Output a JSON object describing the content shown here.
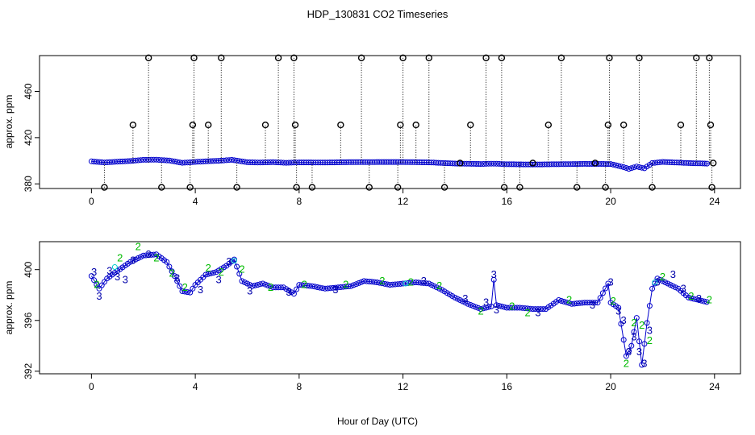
{
  "title": "HDP_130831  CO2 Timeseries",
  "xlabel": "Hour of Day (UTC)",
  "colors": {
    "main": "#0000cc",
    "flag2": "#00bb00",
    "flag3": "#0000aa",
    "flag1": "#00cccc",
    "axis": "#000000"
  },
  "chart_data": [
    {
      "type": "scatter",
      "panel": "top",
      "ylabel": "approx. ppm",
      "xlim": [
        -2,
        25
      ],
      "ylim": [
        376,
        491
      ],
      "x_ticks": [
        "0",
        "4",
        "8",
        "12",
        "16",
        "20",
        "24"
      ],
      "y_ticks": [
        "380",
        "420",
        "460"
      ],
      "series": [
        {
          "name": "timeseries",
          "marker": "circle",
          "points": [
            [
              0,
              399.5
            ],
            [
              0.5,
              398.5
            ],
            [
              1,
              399.2
            ],
            [
              1.5,
              399.8
            ],
            [
              2,
              400.8
            ],
            [
              2.5,
              400.9
            ],
            [
              3,
              400.2
            ],
            [
              3.5,
              398.2
            ],
            [
              4,
              399
            ],
            [
              4.5,
              399.6
            ],
            [
              5,
              400.1
            ],
            [
              5.4,
              400.8
            ],
            [
              6,
              398.7
            ],
            [
              6.5,
              398.5
            ],
            [
              7,
              398.8
            ],
            [
              7.5,
              398.2
            ],
            [
              8,
              398.6
            ],
            [
              9,
              398.5
            ],
            [
              10,
              398.8
            ],
            [
              11,
              398.9
            ],
            [
              12,
              398.9
            ],
            [
              13,
              398.6
            ],
            [
              14,
              397.6
            ],
            [
              15,
              397.2
            ],
            [
              15.5,
              397.5
            ],
            [
              16,
              397
            ],
            [
              17,
              396.8
            ],
            [
              18,
              397
            ],
            [
              19,
              397.3
            ],
            [
              20,
              397.2
            ],
            [
              20.5,
              394.5
            ],
            [
              20.7,
              393
            ],
            [
              21,
              395
            ],
            [
              21.3,
              393.5
            ],
            [
              21.6,
              398
            ],
            [
              22,
              399
            ],
            [
              23,
              398
            ],
            [
              23.8,
              397.5
            ]
          ]
        },
        {
          "name": "flags",
          "marker": "circle-bold",
          "points": [
            [
              0.5,
              377
            ],
            [
              1.6,
              431
            ],
            [
              2.2,
              489
            ],
            [
              2.7,
              377
            ],
            [
              3.8,
              377
            ],
            [
              3.9,
              431
            ],
            [
              3.95,
              489
            ],
            [
              4.5,
              431
            ],
            [
              5.0,
              489
            ],
            [
              5.6,
              377
            ],
            [
              6.7,
              431
            ],
            [
              7.2,
              489
            ],
            [
              7.8,
              489
            ],
            [
              7.85,
              431
            ],
            [
              7.9,
              377
            ],
            [
              8.5,
              377
            ],
            [
              9.6,
              431
            ],
            [
              10.4,
              489
            ],
            [
              10.7,
              377
            ],
            [
              11.8,
              377
            ],
            [
              11.9,
              431
            ],
            [
              12.0,
              489
            ],
            [
              12.5,
              431
            ],
            [
              13.0,
              489
            ],
            [
              13.6,
              377
            ],
            [
              14.2,
              398
            ],
            [
              14.6,
              431
            ],
            [
              15.2,
              489
            ],
            [
              15.8,
              489
            ],
            [
              15.9,
              377
            ],
            [
              16.5,
              377
            ],
            [
              17.0,
              398
            ],
            [
              17.6,
              431
            ],
            [
              18.1,
              489
            ],
            [
              18.7,
              377
            ],
            [
              19.4,
              398
            ],
            [
              19.8,
              377
            ],
            [
              19.9,
              431
            ],
            [
              19.95,
              489
            ],
            [
              20.5,
              431
            ],
            [
              21.1,
              489
            ],
            [
              21.6,
              377
            ],
            [
              22.7,
              431
            ],
            [
              23.3,
              489
            ],
            [
              23.8,
              489
            ],
            [
              23.85,
              431
            ],
            [
              23.9,
              377
            ],
            [
              23.95,
              398
            ]
          ]
        }
      ]
    },
    {
      "type": "scatter",
      "panel": "bottom",
      "ylabel": "approx. ppm",
      "xlim": [
        -2,
        25
      ],
      "ylim": [
        391.8,
        402.2
      ],
      "x_ticks": [
        "0",
        "4",
        "8",
        "12",
        "16",
        "20",
        "24"
      ],
      "y_ticks": [
        "392",
        "396",
        "400"
      ],
      "series": [
        {
          "name": "timeseries",
          "marker": "circle",
          "points": [
            [
              0,
              399.5
            ],
            [
              0.3,
              398.5
            ],
            [
              0.6,
              399.3
            ],
            [
              1,
              399.9
            ],
            [
              1.5,
              400.6
            ],
            [
              2,
              401.1
            ],
            [
              2.5,
              401.2
            ],
            [
              2.9,
              400.6
            ],
            [
              3.2,
              399.5
            ],
            [
              3.5,
              398.3
            ],
            [
              3.8,
              398.2
            ],
            [
              4,
              398.8
            ],
            [
              4.4,
              399.6
            ],
            [
              4.8,
              399.8
            ],
            [
              5.2,
              400.3
            ],
            [
              5.5,
              400.8
            ],
            [
              5.8,
              399.1
            ],
            [
              6.2,
              398.7
            ],
            [
              6.6,
              398.9
            ],
            [
              7,
              398.6
            ],
            [
              7.4,
              398.6
            ],
            [
              7.8,
              398.1
            ],
            [
              8,
              398.8
            ],
            [
              8.5,
              398.7
            ],
            [
              9,
              398.5
            ],
            [
              9.5,
              398.6
            ],
            [
              10,
              398.7
            ],
            [
              10.5,
              399.1
            ],
            [
              11,
              399
            ],
            [
              11.5,
              398.8
            ],
            [
              12,
              398.9
            ],
            [
              12.5,
              399.0
            ],
            [
              13,
              398.9
            ],
            [
              13.5,
              398.4
            ],
            [
              14,
              397.8
            ],
            [
              14.5,
              397.3
            ],
            [
              15,
              396.9
            ],
            [
              15.4,
              397.1
            ],
            [
              15.5,
              399.2
            ],
            [
              15.6,
              397.2
            ],
            [
              16,
              397.0
            ],
            [
              16.5,
              397.0
            ],
            [
              17,
              396.9
            ],
            [
              17.5,
              396.9
            ],
            [
              18,
              397.6
            ],
            [
              18.5,
              397.3
            ],
            [
              19,
              397.4
            ],
            [
              19.5,
              397.4
            ],
            [
              19.9,
              398.9
            ],
            [
              20,
              397.4
            ],
            [
              20.3,
              397.0
            ],
            [
              20.6,
              393.2
            ],
            [
              20.8,
              394.0
            ],
            [
              21,
              396.2
            ],
            [
              21.2,
              392.5
            ],
            [
              21.4,
              395.8
            ],
            [
              21.6,
              398.5
            ],
            [
              21.8,
              399.3
            ],
            [
              22.2,
              398.9
            ],
            [
              22.6,
              398.5
            ],
            [
              23,
              397.8
            ],
            [
              23.4,
              397.6
            ],
            [
              23.8,
              397.4
            ]
          ]
        },
        {
          "name": "flag 2",
          "marker": "2",
          "points": [
            [
              0.2,
              398.8
            ],
            [
              1.1,
              400.9
            ],
            [
              1.8,
              401.8
            ],
            [
              2.5,
              400.9
            ],
            [
              3.1,
              399.7
            ],
            [
              3.6,
              398.6
            ],
            [
              4.5,
              400.1
            ],
            [
              5,
              399.8
            ],
            [
              5.8,
              400.0
            ],
            [
              6.9,
              398.6
            ],
            [
              8.2,
              398.8
            ],
            [
              9.8,
              398.8
            ],
            [
              11.2,
              399.1
            ],
            [
              12.3,
              399.0
            ],
            [
              13.4,
              398.7
            ],
            [
              15,
              396.7
            ],
            [
              16.2,
              397.1
            ],
            [
              16.8,
              396.6
            ],
            [
              18.4,
              397.6
            ],
            [
              20.1,
              397.5
            ],
            [
              20.6,
              392.6
            ],
            [
              20.9,
              395.8
            ],
            [
              21.2,
              395.6
            ],
            [
              21.5,
              394.4
            ],
            [
              22.0,
              399.4
            ],
            [
              23.1,
              397.9
            ],
            [
              23.8,
              397.6
            ]
          ]
        },
        {
          "name": "flag 3",
          "marker": "3",
          "points": [
            [
              0.1,
              399.8
            ],
            [
              0.3,
              397.9
            ],
            [
              0.7,
              399.9
            ],
            [
              1,
              399.4
            ],
            [
              1.3,
              399.2
            ],
            [
              1.6,
              400.7
            ],
            [
              2.2,
              401.2
            ],
            [
              3.3,
              399.3
            ],
            [
              4.2,
              398.4
            ],
            [
              4.9,
              399.2
            ],
            [
              5.3,
              400.6
            ],
            [
              6.1,
              398.3
            ],
            [
              7.6,
              398.2
            ],
            [
              9.4,
              398.4
            ],
            [
              12.8,
              399.1
            ],
            [
              14.4,
              397.7
            ],
            [
              15.2,
              397.4
            ],
            [
              15.5,
              399.6
            ],
            [
              15.6,
              396.8
            ],
            [
              17.2,
              396.6
            ],
            [
              19.3,
              397.2
            ],
            [
              20.0,
              399.0
            ],
            [
              20.3,
              396.7
            ],
            [
              20.5,
              396.0
            ],
            [
              20.7,
              393.5
            ],
            [
              20.9,
              394.7
            ],
            [
              21.1,
              393.5
            ],
            [
              21.3,
              392.6
            ],
            [
              21.5,
              395.2
            ],
            [
              21.8,
              399.0
            ],
            [
              22.4,
              399.6
            ],
            [
              22.8,
              398.5
            ],
            [
              23.4,
              397.7
            ]
          ]
        },
        {
          "name": "flag 1",
          "marker": "circle-light",
          "points": [
            [
              0.9,
              400.2
            ],
            [
              5.5,
              400.7
            ],
            [
              12.1,
              398.9
            ],
            [
              21.7,
              399.0
            ]
          ]
        }
      ]
    }
  ]
}
